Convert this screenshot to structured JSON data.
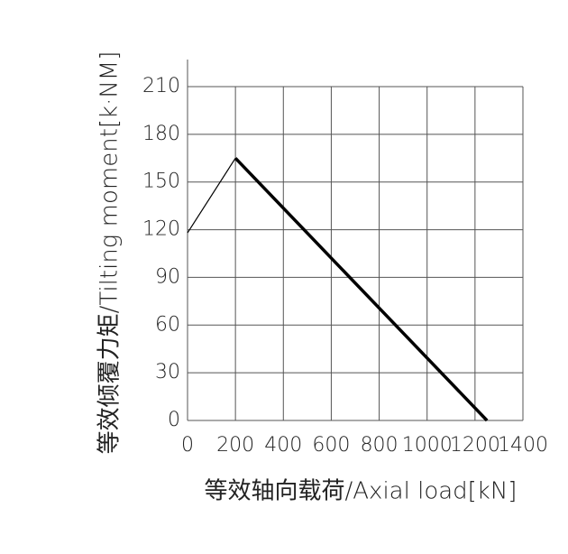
{
  "chart_data": {
    "type": "line",
    "x_label": "等效轴向载荷/Axial load[kN]",
    "y_label": "等效倾覆力矩/Tilting moment[k·NM]",
    "series": [
      {
        "x": [
          0,
          200
        ],
        "values": [
          118,
          165
        ],
        "color": "#000000",
        "line_width": 1.2
      },
      {
        "x": [
          200,
          1250
        ],
        "values": [
          165,
          0
        ],
        "color": "#000000",
        "line_width": 3.5
      }
    ],
    "xlim": [
      0,
      1400
    ],
    "xticks": [
      0,
      200,
      400,
      600,
      800,
      1000,
      1200,
      1400
    ],
    "ylim": [
      0,
      210
    ],
    "yticks": [
      0,
      30,
      60,
      90,
      120,
      150,
      180,
      210
    ],
    "grid": true
  }
}
